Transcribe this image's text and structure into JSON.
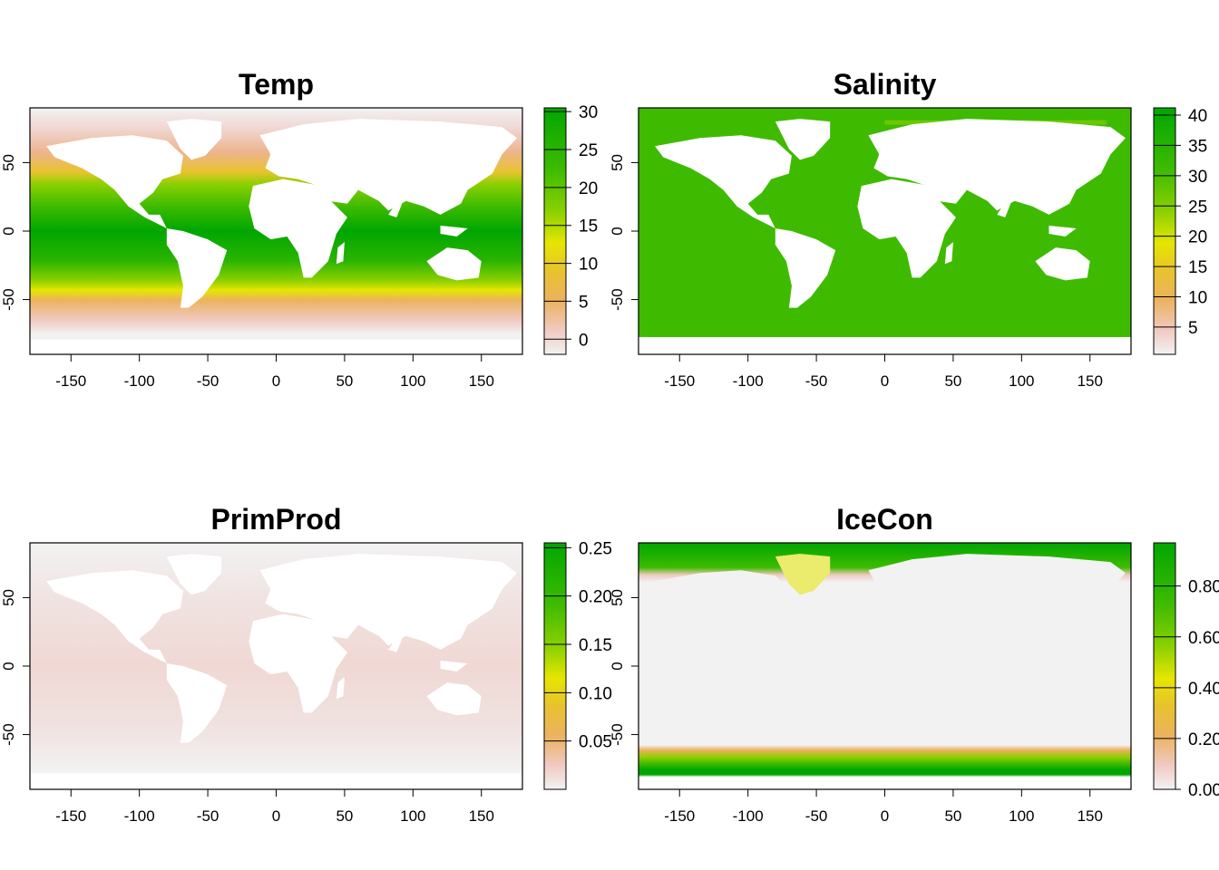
{
  "panels": [
    {
      "title": "Temp",
      "x_ticks": [
        -150,
        -100,
        -50,
        0,
        50,
        100,
        150
      ],
      "y_ticks": [
        50,
        0,
        -50
      ],
      "x_range": [
        -180,
        180
      ],
      "y_range": [
        -90,
        90
      ],
      "legend_ticks": [
        "30",
        "25",
        "20",
        "15",
        "10",
        "5",
        "0"
      ],
      "legend_range": [
        -2,
        30.5
      ],
      "legend_values": [
        30,
        25,
        20,
        15,
        10,
        5,
        0
      ]
    },
    {
      "title": "Salinity",
      "x_ticks": [
        -150,
        -100,
        -50,
        0,
        50,
        100,
        150
      ],
      "y_ticks": [
        50,
        0,
        -50
      ],
      "x_range": [
        -180,
        180
      ],
      "y_range": [
        -90,
        90
      ],
      "legend_ticks": [
        "40",
        "35",
        "30",
        "25",
        "20",
        "15",
        "10",
        "5"
      ],
      "legend_range": [
        0.5,
        41.2
      ],
      "legend_values": [
        40,
        35,
        30,
        25,
        20,
        15,
        10,
        5
      ]
    },
    {
      "title": "PrimProd",
      "x_ticks": [
        -150,
        -100,
        -50,
        0,
        50,
        100,
        150
      ],
      "y_ticks": [
        50,
        0,
        -50
      ],
      "x_range": [
        -180,
        180
      ],
      "y_range": [
        -90,
        90
      ],
      "legend_ticks": [
        "0.25",
        "0.20",
        "0.15",
        "0.10",
        "0.05"
      ],
      "legend_range": [
        0.0,
        0.255
      ],
      "legend_values": [
        0.25,
        0.2,
        0.15,
        0.1,
        0.05
      ]
    },
    {
      "title": "IceCon",
      "x_ticks": [
        -150,
        -100,
        -50,
        0,
        50,
        100,
        150
      ],
      "y_ticks": [
        50,
        0,
        -50
      ],
      "x_range": [
        -180,
        180
      ],
      "y_range": [
        -90,
        90
      ],
      "legend_ticks": [
        "0.80",
        "0.60",
        "0.40",
        "0.20",
        "0.00"
      ],
      "legend_range": [
        0.0,
        0.97
      ],
      "legend_values": [
        0.8,
        0.6,
        0.4,
        0.2,
        0.0
      ]
    }
  ],
  "palette": [
    "#00A600",
    "#3EBB00",
    "#8BD000",
    "#E6E600",
    "#E8C32E",
    "#EBB25E",
    "#EDB48E",
    "#F0C9C0",
    "#F2F2F2"
  ]
}
